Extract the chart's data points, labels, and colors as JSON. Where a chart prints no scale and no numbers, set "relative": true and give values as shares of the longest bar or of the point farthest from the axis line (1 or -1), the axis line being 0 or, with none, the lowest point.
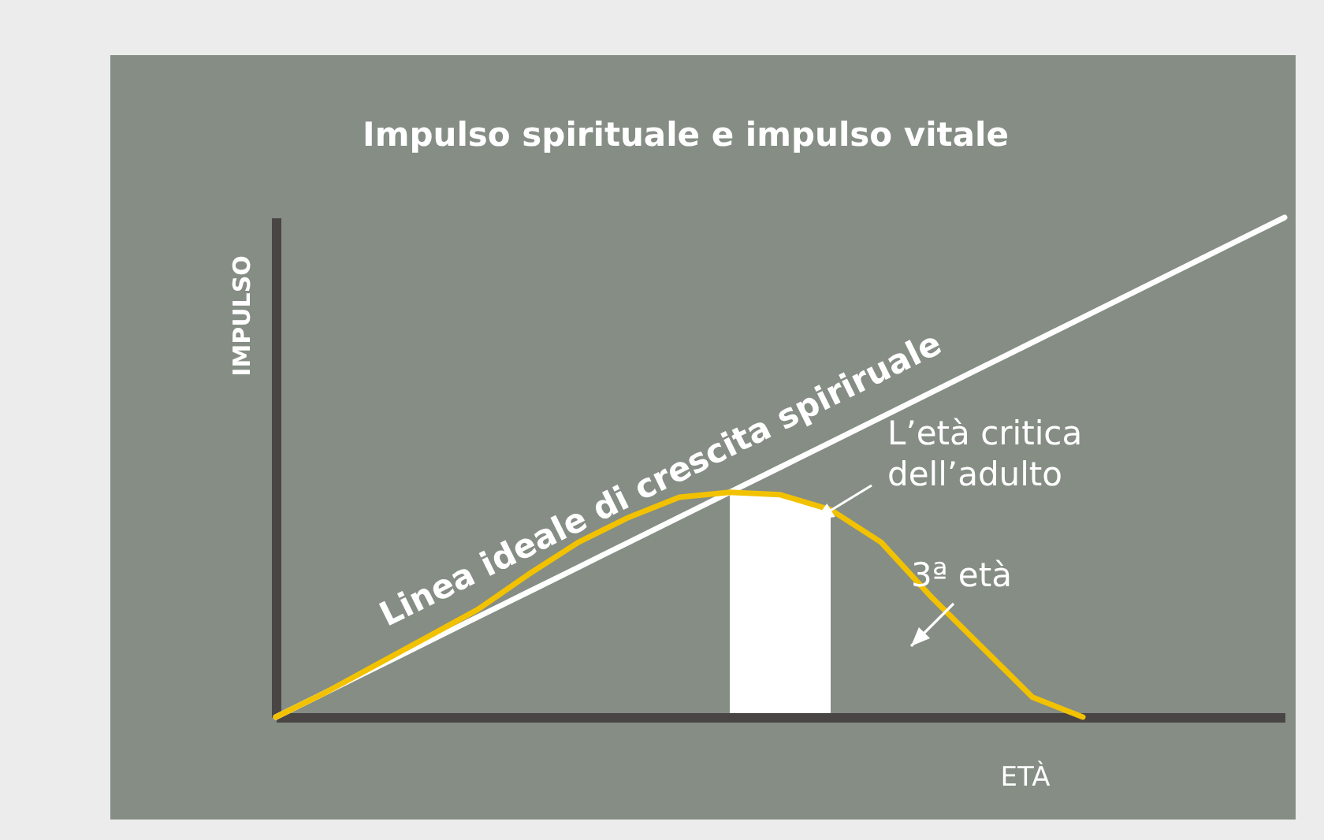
{
  "chart_data": {
    "type": "line",
    "title": "Impulso spirituale e impulso vitale",
    "xlabel": "ETÀ",
    "ylabel": "IMPULSO",
    "relative": true,
    "tick_labels": false,
    "legend": false,
    "line_style": "solid",
    "categories": [
      null,
      null,
      null,
      null,
      null,
      null,
      null,
      null,
      null,
      null,
      null,
      null,
      null,
      null,
      null,
      null,
      null,
      null,
      null,
      null,
      null
    ],
    "series": [
      {
        "name": "Linea ideale di crescita spiriruale",
        "color": "#ffffff",
        "values": [
          0,
          0.05,
          0.1,
          0.15,
          0.2,
          0.25,
          0.3,
          0.35,
          0.4,
          0.45,
          0.5,
          0.55,
          0.6,
          0.65,
          0.7,
          0.75,
          0.8,
          0.85,
          0.9,
          0.95,
          1
        ]
      },
      {
        "color": "#f2c200",
        "values": [
          0,
          0.05,
          0.105,
          0.16,
          0.215,
          0.285,
          0.35,
          0.4,
          0.44,
          0.45,
          0.445,
          0.415,
          0.35,
          0.24,
          0.14,
          0.04,
          0,
          null,
          null,
          null,
          null
        ]
      }
    ],
    "annotations": [
      "L’età critica\ndell’adulto",
      "3ª età"
    ]
  }
}
